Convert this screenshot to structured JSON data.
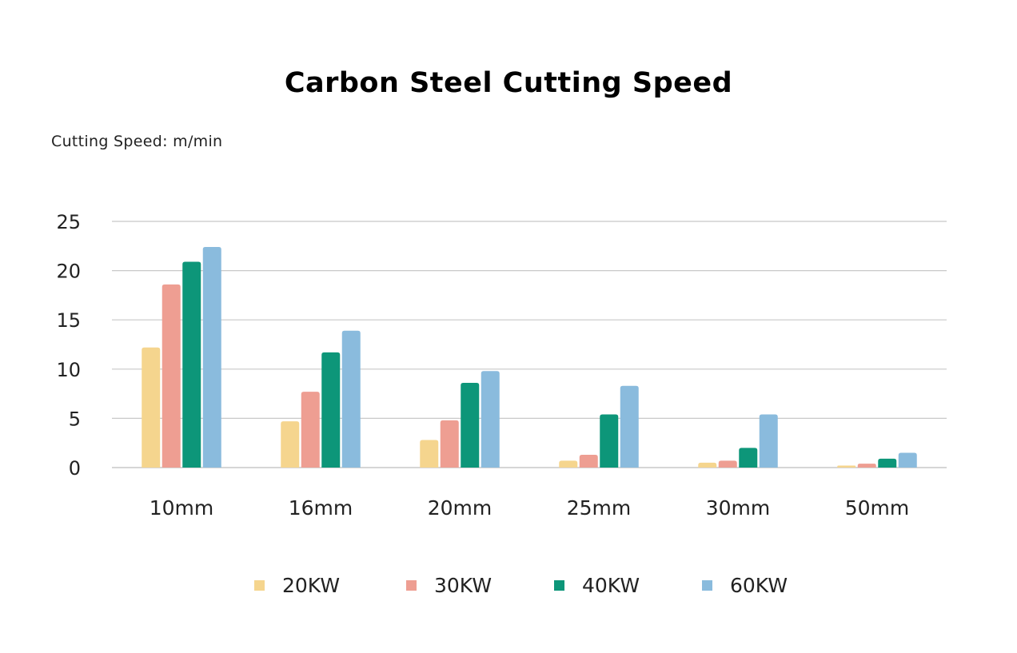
{
  "title": "Carbon Steel Cutting Speed",
  "unit_label": "Cutting Speed: m/min",
  "chart_data": {
    "type": "bar",
    "title": "Carbon Steel Cutting Speed",
    "ylabel": "Cutting Speed: m/min",
    "ylim": [
      0,
      25
    ],
    "yticks": [
      0,
      5,
      10,
      15,
      20,
      25
    ],
    "grid": true,
    "legend_position": "bottom",
    "categories": [
      "10mm",
      "16mm",
      "20mm",
      "25mm",
      "30mm",
      "50mm"
    ],
    "series": [
      {
        "name": "20KW",
        "color": "#F5D58E",
        "values": [
          12.2,
          4.7,
          2.8,
          0.7,
          0.5,
          0.2
        ]
      },
      {
        "name": "30KW",
        "color": "#EE9E92",
        "values": [
          18.6,
          7.7,
          4.8,
          1.3,
          0.7,
          0.4
        ]
      },
      {
        "name": "40KW",
        "color": "#0D9679",
        "values": [
          20.9,
          11.7,
          8.6,
          5.4,
          2.0,
          0.9
        ]
      },
      {
        "name": "60KW",
        "color": "#8ABBDD",
        "values": [
          22.4,
          13.9,
          9.8,
          8.3,
          5.4,
          1.5
        ]
      }
    ]
  }
}
